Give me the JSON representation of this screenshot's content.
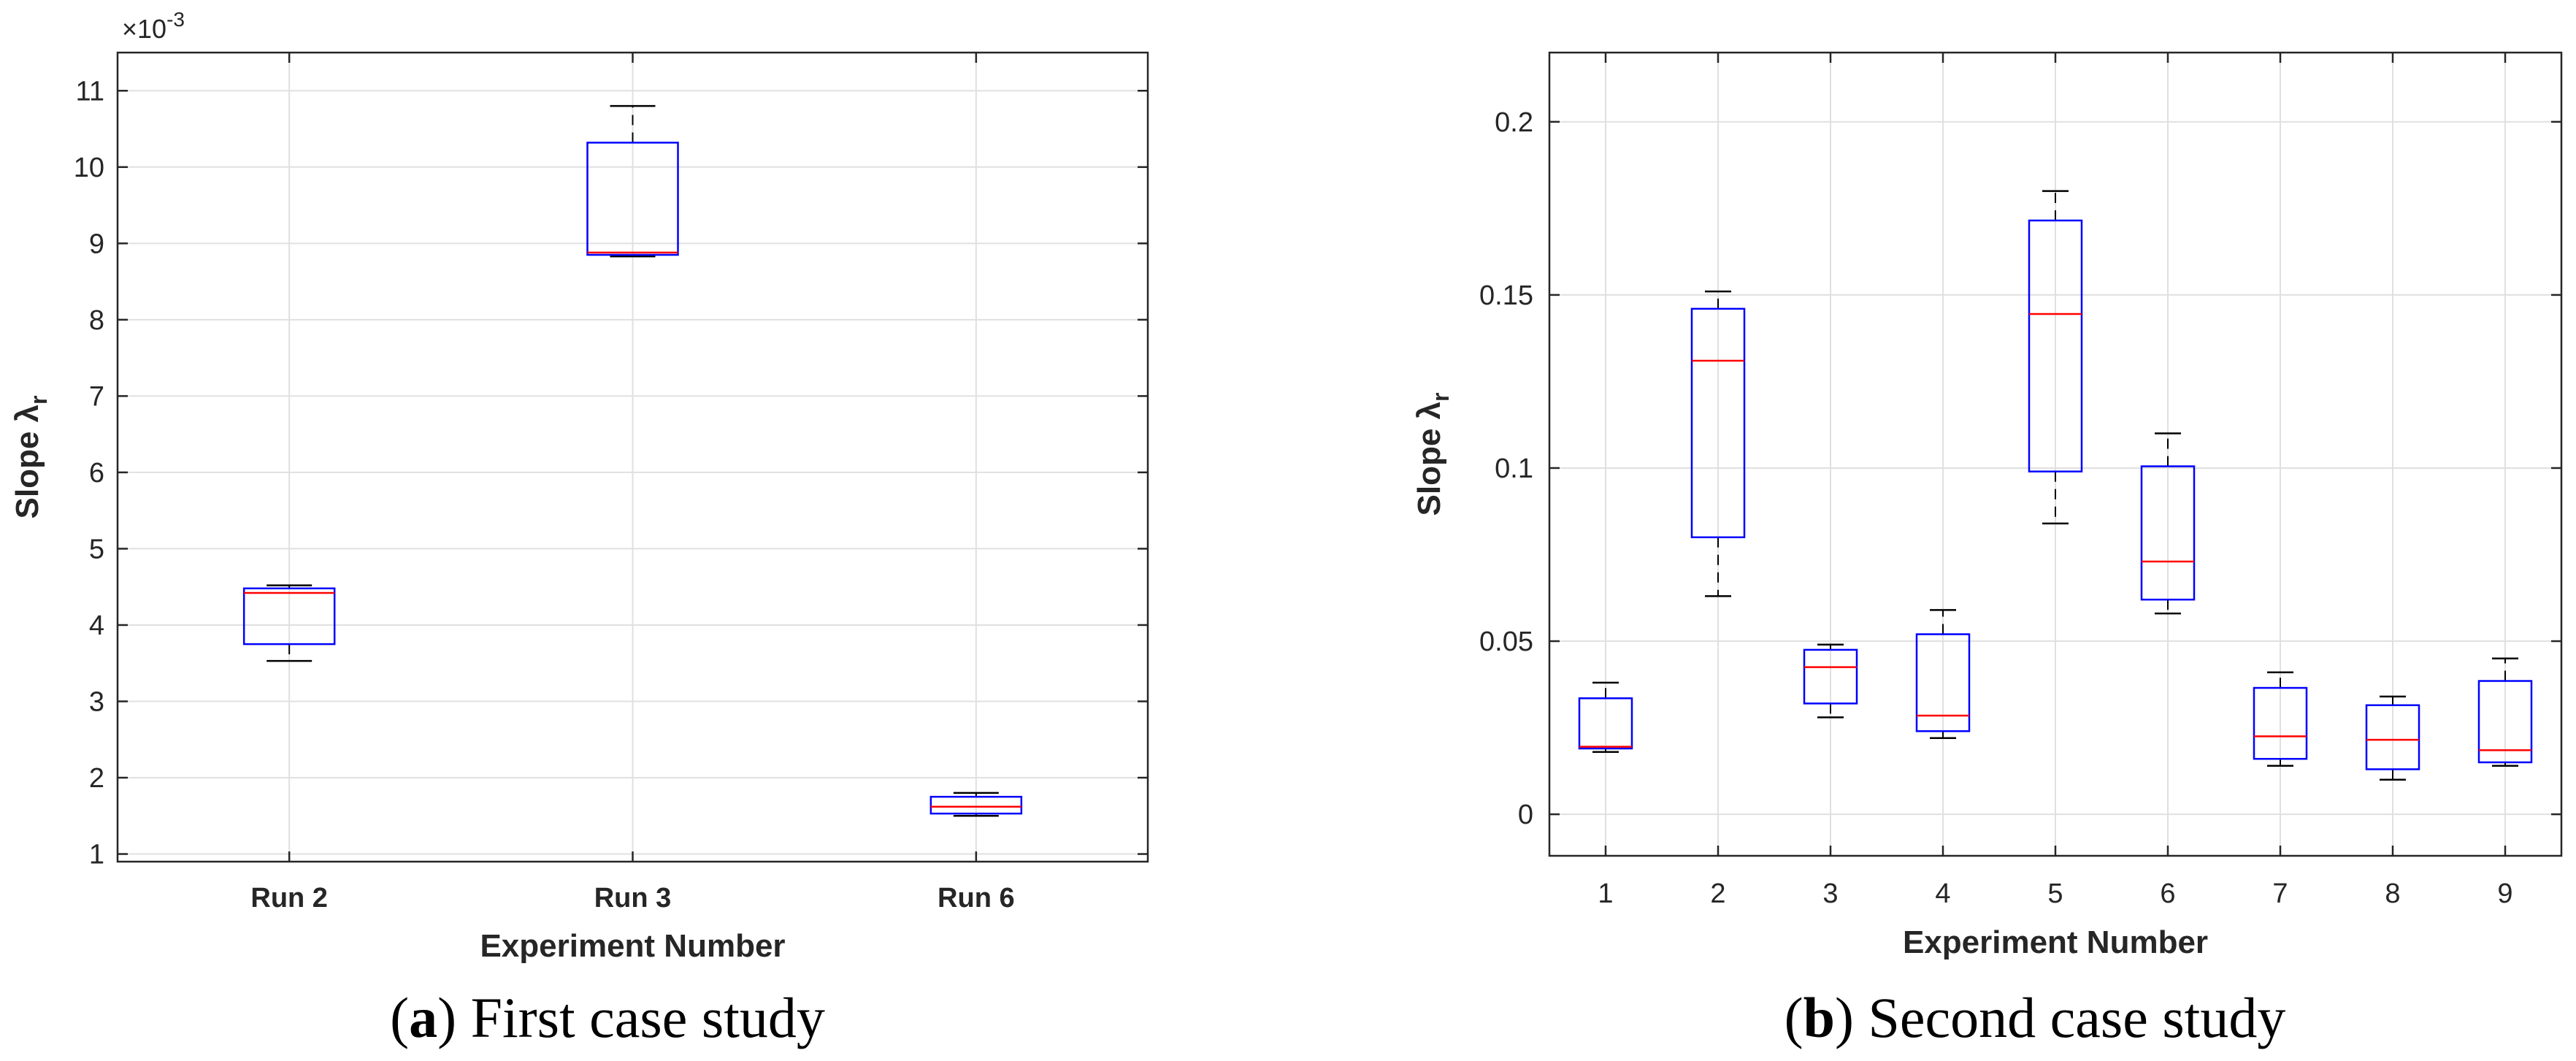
{
  "chart_data": [
    {
      "type": "box",
      "panel_label": "a",
      "caption": "First case study",
      "xlabel": "Experiment Number",
      "ylabel": "Slope λ",
      "ylabel_subscript": "r",
      "exponent_prefix": "×10",
      "exponent_power": "-3",
      "ylim": [
        0.9,
        11.5
      ],
      "yticks": [
        1,
        2,
        3,
        4,
        5,
        6,
        7,
        8,
        9,
        10,
        11
      ],
      "ytick_labels": [
        "1",
        "2",
        "3",
        "4",
        "5",
        "6",
        "7",
        "8",
        "9",
        "10",
        "11"
      ],
      "grid": true,
      "categories": [
        "Run 2",
        "Run 3",
        "Run 6"
      ],
      "boxes": [
        {
          "category": "Run 2",
          "whisker_low": 3.53,
          "q1": 3.75,
          "median": 4.42,
          "q3": 4.48,
          "whisker_high": 4.52
        },
        {
          "category": "Run 3",
          "whisker_low": 8.83,
          "q1": 8.85,
          "median": 8.88,
          "q3": 10.32,
          "whisker_high": 10.8
        },
        {
          "category": "Run 6",
          "whisker_low": 1.5,
          "q1": 1.53,
          "median": 1.62,
          "q3": 1.75,
          "whisker_high": 1.8
        }
      ]
    },
    {
      "type": "box",
      "panel_label": "b",
      "caption": "Second case study",
      "xlabel": "Experiment Number",
      "ylabel": "Slope λ",
      "ylabel_subscript": "r",
      "ylim": [
        -0.012,
        0.22
      ],
      "yticks": [
        0,
        0.05,
        0.1,
        0.15,
        0.2
      ],
      "ytick_labels": [
        "0",
        "0.05",
        "0.1",
        "0.15",
        "0.2"
      ],
      "grid": true,
      "categories": [
        "1",
        "2",
        "3",
        "4",
        "5",
        "6",
        "7",
        "8",
        "9"
      ],
      "boxes": [
        {
          "category": "1",
          "whisker_low": 0.018,
          "q1": 0.019,
          "median": 0.0195,
          "q3": 0.0335,
          "whisker_high": 0.038
        },
        {
          "category": "2",
          "whisker_low": 0.063,
          "q1": 0.08,
          "median": 0.131,
          "q3": 0.146,
          "whisker_high": 0.151
        },
        {
          "category": "3",
          "whisker_low": 0.028,
          "q1": 0.032,
          "median": 0.0425,
          "q3": 0.0475,
          "whisker_high": 0.049
        },
        {
          "category": "4",
          "whisker_low": 0.022,
          "q1": 0.024,
          "median": 0.0285,
          "q3": 0.052,
          "whisker_high": 0.059
        },
        {
          "category": "5",
          "whisker_low": 0.084,
          "q1": 0.099,
          "median": 0.1445,
          "q3": 0.1715,
          "whisker_high": 0.18
        },
        {
          "category": "6",
          "whisker_low": 0.058,
          "q1": 0.062,
          "median": 0.073,
          "q3": 0.1005,
          "whisker_high": 0.11
        },
        {
          "category": "7",
          "whisker_low": 0.014,
          "q1": 0.016,
          "median": 0.0225,
          "q3": 0.0365,
          "whisker_high": 0.041
        },
        {
          "category": "8",
          "whisker_low": 0.01,
          "q1": 0.013,
          "median": 0.0215,
          "q3": 0.0315,
          "whisker_high": 0.034
        },
        {
          "category": "9",
          "whisker_low": 0.014,
          "q1": 0.015,
          "median": 0.0185,
          "q3": 0.0385,
          "whisker_high": 0.045
        }
      ]
    }
  ],
  "colors": {
    "box": "#0000ff",
    "median": "#ff0000",
    "whisker": "#000000",
    "grid": "#e0e0e0",
    "axis": "#262626"
  }
}
